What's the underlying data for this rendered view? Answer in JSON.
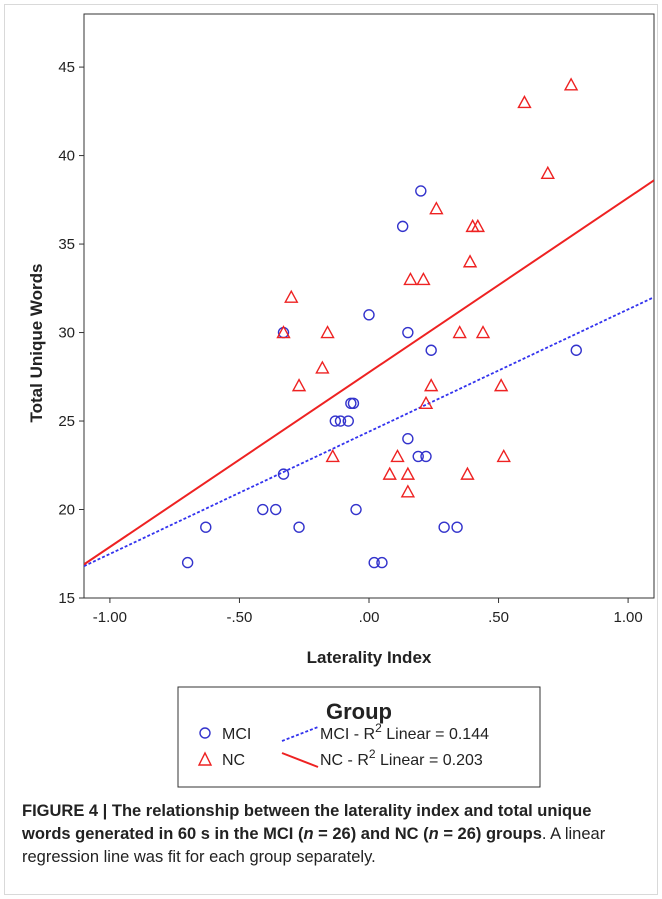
{
  "chart_data": {
    "type": "scatter",
    "xlabel": "Laterality Index",
    "ylabel": "Total Unique Words",
    "xlim": [
      -1.1,
      1.1
    ],
    "ylim": [
      15,
      48
    ],
    "xticks": [
      -1.0,
      -0.5,
      0.0,
      0.5,
      1.0
    ],
    "xtick_labels": [
      "-1.00",
      "-.50",
      ".00",
      ".50",
      "1.00"
    ],
    "yticks": [
      15,
      20,
      25,
      30,
      35,
      40,
      45
    ],
    "ytick_labels": [
      "15",
      "20",
      "25",
      "30",
      "35",
      "40",
      "45"
    ],
    "grid": false,
    "legend_title": "Group",
    "legend_placement": "bottom",
    "series": [
      {
        "name": "MCI",
        "marker": "circle",
        "color": "#3333cc",
        "points": [
          [
            -0.7,
            17
          ],
          [
            -0.63,
            19
          ],
          [
            -0.41,
            20
          ],
          [
            -0.36,
            20
          ],
          [
            -0.33,
            22
          ],
          [
            -0.33,
            30
          ],
          [
            -0.27,
            19
          ],
          [
            -0.13,
            25
          ],
          [
            -0.11,
            25
          ],
          [
            -0.08,
            25
          ],
          [
            -0.07,
            26
          ],
          [
            -0.06,
            26
          ],
          [
            -0.05,
            20
          ],
          [
            0.0,
            31
          ],
          [
            0.02,
            17
          ],
          [
            0.05,
            17
          ],
          [
            0.13,
            36
          ],
          [
            0.15,
            24
          ],
          [
            0.15,
            30
          ],
          [
            0.19,
            23
          ],
          [
            0.2,
            38
          ],
          [
            0.22,
            23
          ],
          [
            0.24,
            29
          ],
          [
            0.29,
            19
          ],
          [
            0.34,
            19
          ],
          [
            0.8,
            29
          ]
        ]
      },
      {
        "name": "NC",
        "marker": "triangle",
        "color": "#ee2222",
        "points": [
          [
            -0.33,
            30
          ],
          [
            -0.3,
            32
          ],
          [
            -0.27,
            27
          ],
          [
            -0.18,
            28
          ],
          [
            -0.16,
            30
          ],
          [
            -0.14,
            23
          ],
          [
            0.08,
            22
          ],
          [
            0.11,
            23
          ],
          [
            0.15,
            22
          ],
          [
            0.15,
            21
          ],
          [
            0.16,
            33
          ],
          [
            0.21,
            33
          ],
          [
            0.22,
            26
          ],
          [
            0.24,
            27
          ],
          [
            0.26,
            37
          ],
          [
            0.35,
            30
          ],
          [
            0.38,
            22
          ],
          [
            0.39,
            34
          ],
          [
            0.4,
            36
          ],
          [
            0.42,
            36
          ],
          [
            0.44,
            30
          ],
          [
            0.51,
            27
          ],
          [
            0.52,
            23
          ],
          [
            0.6,
            43
          ],
          [
            0.69,
            39
          ],
          [
            0.78,
            44
          ]
        ]
      }
    ],
    "fit_lines": [
      {
        "name": "MCI - R",
        "sup": "2",
        "suffix": " Linear = 0.144",
        "x": [
          -1.1,
          1.1
        ],
        "y": [
          16.8,
          32.0
        ],
        "color": "#3333ee",
        "style": "dotted"
      },
      {
        "name": "NC - R",
        "sup": "2",
        "suffix": " Linear = 0.203",
        "x": [
          -1.1,
          1.1
        ],
        "y": [
          16.9,
          38.6
        ],
        "color": "#ee2222",
        "style": "solid"
      }
    ]
  },
  "caption": {
    "figure_label": "FIGURE 4 | The relationship between the laterality index and total unique words generated in 60 s in the MCI (",
    "n1_var": "n",
    "n1_eq": " = 26) and NC (",
    "n2_var": "n",
    "n2_eq": " = 26)",
    "bold_tail": " groups",
    "rest": ". A linear regression line was fit for each group separately."
  }
}
